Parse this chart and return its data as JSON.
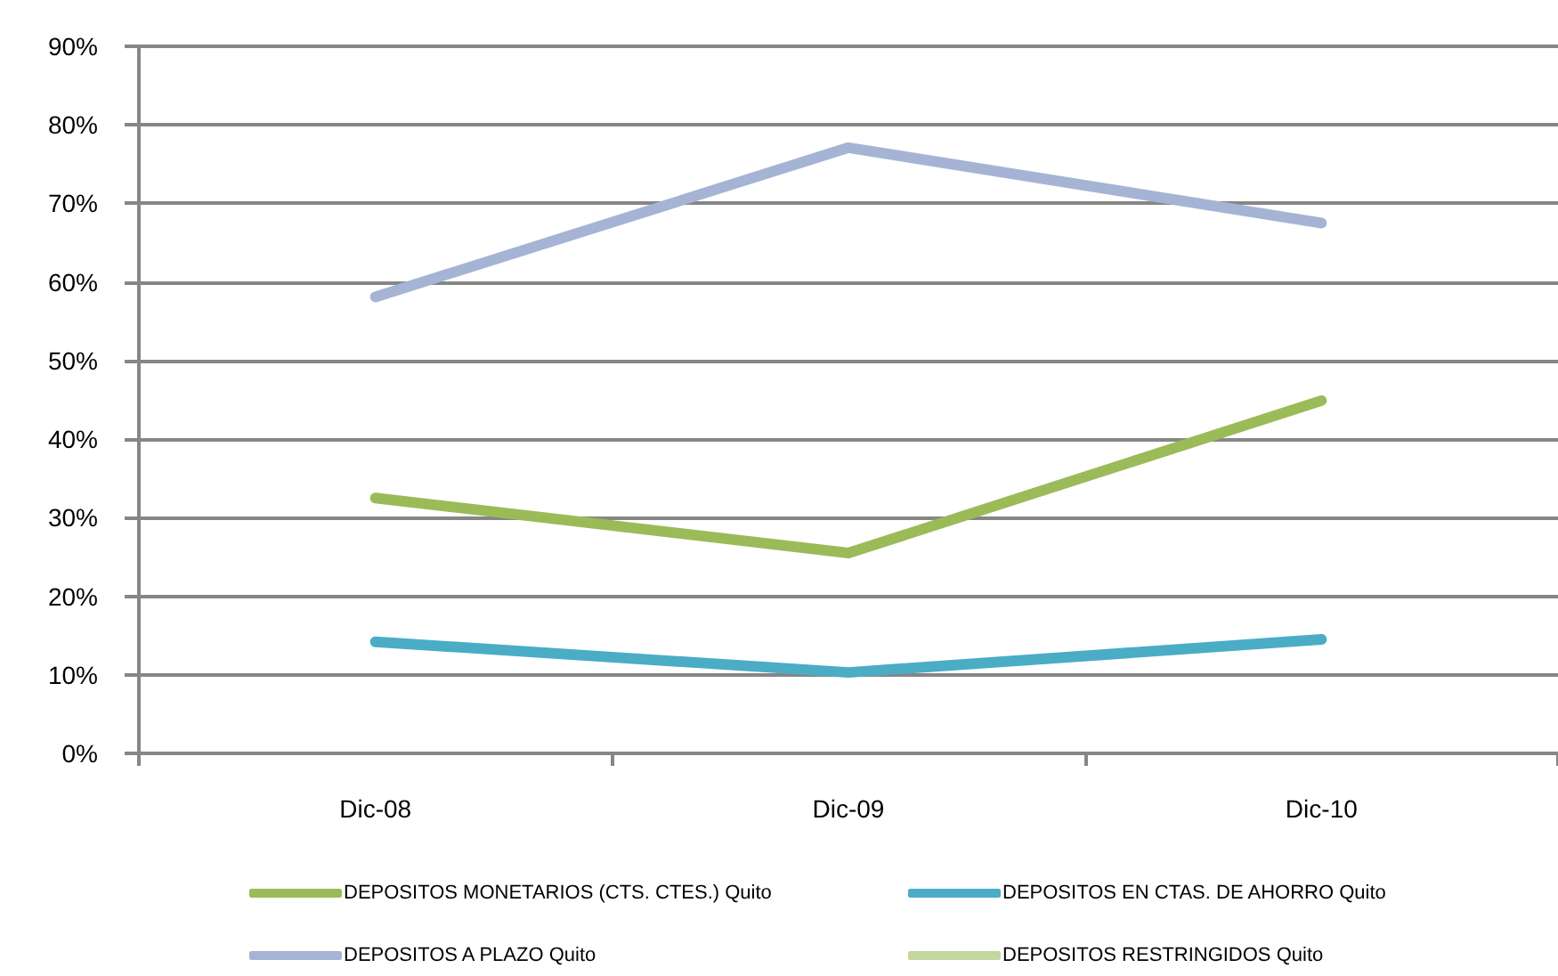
{
  "chart_data": {
    "type": "line",
    "categories": [
      "Dic-08",
      "Dic-09",
      "Dic-10"
    ],
    "series": [
      {
        "name": "DEPOSITOS MONETARIOS (CTS. CTES.) Quito",
        "color": "#9bbb59",
        "values": [
          32.5,
          25.5,
          44.9
        ]
      },
      {
        "name": "DEPOSITOS EN CTAS. DE AHORRO Quito",
        "color": "#4bacc6",
        "values": [
          14.2,
          10.3,
          14.5
        ]
      },
      {
        "name": "DEPOSITOS A PLAZO Quito",
        "color": "#a5b4d4",
        "values": [
          58.1,
          77.1,
          67.5
        ]
      },
      {
        "name": "DEPOSITOS RESTRINGIDOS Quito",
        "color": "#c3d69b",
        "values": [
          null,
          null,
          null
        ]
      }
    ],
    "ylim": [
      0,
      90
    ],
    "yticks": [
      {
        "value": 0,
        "label": "0%"
      },
      {
        "value": 10,
        "label": "10%"
      },
      {
        "value": 20,
        "label": "20%"
      },
      {
        "value": 30,
        "label": "30%"
      },
      {
        "value": 40,
        "label": "40%"
      },
      {
        "value": 50,
        "label": "50%"
      },
      {
        "value": 60,
        "label": "60%"
      },
      {
        "value": 70,
        "label": "70%"
      },
      {
        "value": 80,
        "label": "80%"
      },
      {
        "value": 90,
        "label": "90%"
      }
    ],
    "grid": "y",
    "legend": "bottom",
    "marker": "none"
  }
}
